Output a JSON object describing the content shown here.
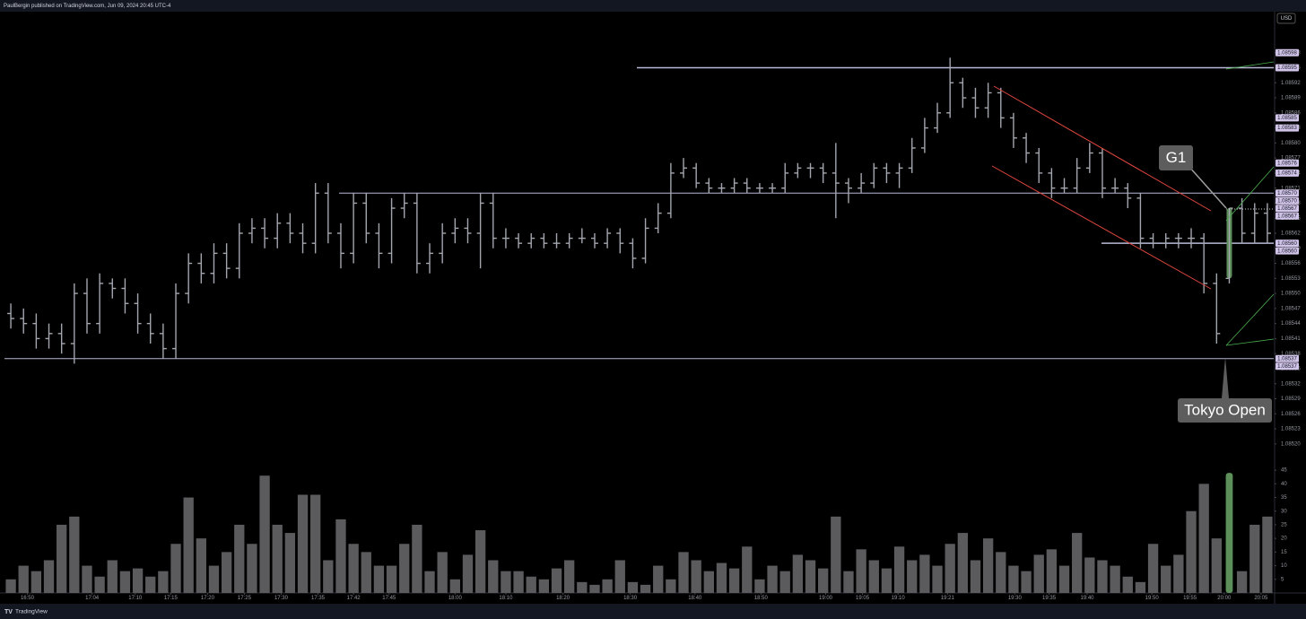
{
  "header": {
    "text": "PaulBergin published on TradingView.com, Jun 09, 2024 20:45 UTC-4"
  },
  "footer": {
    "text": "TradingView"
  },
  "currency": "USD",
  "annotations": {
    "g1": "G1",
    "tokyo": "Tokyo Open"
  },
  "chart_data": {
    "type": "ohlc",
    "bar_color": "#a3a6af",
    "highlight_color": "#5d8f5a",
    "highlight_bar": 96,
    "open": [
      1.08546,
      1.08545,
      1.08544,
      1.08541,
      1.08542,
      1.0854,
      1.0855,
      1.08544,
      1.08552,
      1.08551,
      1.08548,
      1.08544,
      1.08542,
      1.08539,
      1.0855,
      1.08556,
      1.08554,
      1.08558,
      1.08555,
      1.08562,
      1.08563,
      1.08561,
      1.08564,
      1.08562,
      1.0856,
      1.0857,
      1.08562,
      1.08558,
      1.08568,
      1.08562,
      1.08558,
      1.08567,
      1.08568,
      1.08556,
      1.08558,
      1.08562,
      1.08563,
      1.08562,
      1.08568,
      1.08561,
      1.08561,
      1.0856,
      1.08561,
      1.0856,
      1.0856,
      1.08561,
      1.08561,
      1.0856,
      1.08562,
      1.0856,
      1.08557,
      1.08563,
      1.08566,
      1.08574,
      1.08575,
      1.08572,
      1.08571,
      1.08571,
      1.08572,
      1.08571,
      1.08571,
      1.08571,
      1.08574,
      1.08575,
      1.08575,
      1.08574,
      1.08572,
      1.08571,
      1.08572,
      1.08575,
      1.08574,
      1.08575,
      1.08579,
      1.08583,
      1.08586,
      1.08592,
      1.08589,
      1.08587,
      1.0859,
      1.08585,
      1.08581,
      1.08578,
      1.08574,
      1.08571,
      1.08571,
      1.08575,
      1.08578,
      1.08571,
      1.08571,
      1.08569,
      1.08561,
      1.0856,
      1.08561,
      1.08561,
      1.08561,
      1.08552,
      1.08553,
      1.08567,
      1.08562,
      1.08566
    ],
    "high": [
      1.08548,
      1.08547,
      1.08546,
      1.08544,
      1.08544,
      1.08552,
      1.08553,
      1.08554,
      1.08553,
      1.08553,
      1.0855,
      1.08546,
      1.08544,
      1.08552,
      1.08558,
      1.08558,
      1.0856,
      1.0856,
      1.08564,
      1.08565,
      1.08565,
      1.08566,
      1.08566,
      1.08564,
      1.08572,
      1.08572,
      1.08564,
      1.0857,
      1.0857,
      1.08564,
      1.08569,
      1.0857,
      1.0857,
      1.0856,
      1.08564,
      1.08565,
      1.08565,
      1.0857,
      1.0857,
      1.08563,
      1.08562,
      1.08562,
      1.08562,
      1.08562,
      1.08562,
      1.08563,
      1.08562,
      1.08563,
      1.08563,
      1.08561,
      1.08565,
      1.08568,
      1.08576,
      1.08577,
      1.08576,
      1.08573,
      1.08572,
      1.08573,
      1.08573,
      1.08572,
      1.08572,
      1.08576,
      1.08576,
      1.08576,
      1.08576,
      1.0858,
      1.08573,
      1.08574,
      1.08576,
      1.08576,
      1.08576,
      1.08581,
      1.08585,
      1.08588,
      1.08597,
      1.08593,
      1.08591,
      1.08592,
      1.08591,
      1.08586,
      1.08582,
      1.08579,
      1.08575,
      1.08573,
      1.08577,
      1.0858,
      1.08579,
      1.08573,
      1.08572,
      1.0857,
      1.08562,
      1.08562,
      1.08562,
      1.08563,
      1.08562,
      1.08554,
      1.08567,
      1.08569,
      1.08568,
      1.08568
    ],
    "low": [
      1.08543,
      1.08542,
      1.08539,
      1.08539,
      1.08538,
      1.08536,
      1.08542,
      1.08542,
      1.08549,
      1.08546,
      1.08542,
      1.0854,
      1.08537,
      1.08537,
      1.08548,
      1.08552,
      1.08552,
      1.08553,
      1.08553,
      1.0856,
      1.08559,
      1.08559,
      1.0856,
      1.08558,
      1.08558,
      1.0856,
      1.08555,
      1.08556,
      1.0856,
      1.08555,
      1.08556,
      1.08565,
      1.08554,
      1.08554,
      1.08556,
      1.0856,
      1.0856,
      1.08555,
      1.08559,
      1.08559,
      1.08559,
      1.08559,
      1.08559,
      1.08559,
      1.08559,
      1.0856,
      1.08559,
      1.08559,
      1.08558,
      1.08555,
      1.08556,
      1.08562,
      1.08565,
      1.08573,
      1.08571,
      1.0857,
      1.0857,
      1.0857,
      1.0857,
      1.0857,
      1.0857,
      1.0857,
      1.08573,
      1.08573,
      1.08572,
      1.08565,
      1.08568,
      1.0857,
      1.08571,
      1.08572,
      1.08571,
      1.08574,
      1.08578,
      1.08582,
      1.08585,
      1.08587,
      1.08585,
      1.08585,
      1.08583,
      1.08579,
      1.08576,
      1.08572,
      1.08569,
      1.0857,
      1.0857,
      1.08574,
      1.08569,
      1.0857,
      1.08567,
      1.08559,
      1.08559,
      1.08559,
      1.08559,
      1.08559,
      1.0855,
      1.0854,
      1.08552,
      1.0856,
      1.0856,
      1.0856
    ],
    "close": [
      1.08545,
      1.08544,
      1.08541,
      1.08542,
      1.0854,
      1.0855,
      1.08544,
      1.08552,
      1.08551,
      1.08548,
      1.08544,
      1.08542,
      1.08539,
      1.0855,
      1.08556,
      1.08554,
      1.08558,
      1.08555,
      1.08562,
      1.08563,
      1.08561,
      1.08564,
      1.08562,
      1.0856,
      1.0857,
      1.08562,
      1.08558,
      1.08568,
      1.08562,
      1.08558,
      1.08567,
      1.08568,
      1.08556,
      1.08558,
      1.08562,
      1.08563,
      1.08562,
      1.08568,
      1.08561,
      1.08561,
      1.0856,
      1.08561,
      1.0856,
      1.0856,
      1.08561,
      1.08561,
      1.0856,
      1.08562,
      1.0856,
      1.08557,
      1.08563,
      1.08566,
      1.08574,
      1.08575,
      1.08572,
      1.08571,
      1.08571,
      1.08572,
      1.08571,
      1.08571,
      1.08571,
      1.08574,
      1.08575,
      1.08575,
      1.08574,
      1.08572,
      1.08571,
      1.08572,
      1.08575,
      1.08574,
      1.08575,
      1.08579,
      1.08583,
      1.08586,
      1.08592,
      1.08589,
      1.08587,
      1.0859,
      1.08585,
      1.08581,
      1.08578,
      1.08574,
      1.08571,
      1.08571,
      1.08575,
      1.08578,
      1.08571,
      1.08571,
      1.08569,
      1.08561,
      1.0856,
      1.08561,
      1.08561,
      1.08561,
      1.08552,
      1.08542,
      1.08567,
      1.08562,
      1.08566,
      1.08562
    ],
    "volume": [
      5,
      10,
      8,
      12,
      25,
      28,
      10,
      6,
      12,
      8,
      9,
      6,
      8,
      18,
      35,
      20,
      10,
      15,
      25,
      18,
      43,
      25,
      22,
      36,
      36,
      12,
      27,
      18,
      15,
      10,
      10,
      18,
      25,
      8,
      15,
      5,
      14,
      23,
      12,
      8,
      8,
      6,
      5,
      9,
      12,
      4,
      3,
      5,
      12,
      4,
      3,
      10,
      5,
      15,
      12,
      8,
      11,
      9,
      17,
      5,
      10,
      8,
      14,
      12,
      9,
      28,
      8,
      16,
      12,
      9,
      17,
      12,
      14,
      10,
      18,
      22,
      12,
      20,
      15,
      10,
      8,
      14,
      16,
      10,
      22,
      13,
      12,
      10,
      6,
      4,
      18,
      10,
      14,
      30,
      40,
      20,
      44,
      8,
      25,
      28
    ],
    "volume_color": "#5b5b5e",
    "ylim": [
      1.08518,
      1.08606
    ],
    "yticks": [
      {
        "value": 1.0852,
        "label": "1.08520"
      },
      1.08523,
      1.08526,
      1.08529,
      1.08532,
      1.08535,
      1.08538,
      1.08541,
      1.08544,
      1.08547,
      {
        "value": 1.0855,
        "label": "1.08550"
      },
      1.08553,
      1.08556,
      1.08559,
      1.08562,
      1.08565,
      1.08568,
      1.08571,
      1.08574,
      1.08577,
      {
        "value": 1.0858,
        "label": "1.08580"
      },
      1.08583,
      1.08586,
      1.08589,
      1.08592,
      1.08595,
      1.08598
    ],
    "volume_ylim": [
      0,
      48
    ],
    "volume_ticks": [
      5,
      10,
      15,
      20,
      25,
      30,
      35,
      40,
      45
    ],
    "xticks": [
      {
        "value": 1.3,
        "label": "16:50"
      },
      {
        "value": 6.4,
        "label": "17:04"
      },
      {
        "value": 9.8,
        "label": "17:10"
      },
      {
        "value": 12.6,
        "label": "17:15"
      },
      {
        "value": 15.5,
        "label": "17:20"
      },
      {
        "value": 18.4,
        "label": "17:25"
      },
      {
        "value": 21.3,
        "label": "17:30"
      },
      {
        "value": 24.2,
        "label": "17:35"
      },
      {
        "value": 27,
        "label": "17:42"
      },
      {
        "value": 29.8,
        "label": "17:45"
      },
      {
        "value": 35,
        "label": "18:00"
      },
      {
        "value": 39,
        "label": "18:10"
      },
      {
        "value": 43.5,
        "label": "18:20"
      },
      {
        "value": 48.8,
        "label": "18:30"
      },
      {
        "value": 53.9,
        "label": "18:40"
      },
      {
        "value": 59.1,
        "label": "18:50"
      },
      {
        "value": 64.2,
        "label": "19:00"
      },
      {
        "value": 67.1,
        "label": "19:05"
      },
      {
        "value": 69.9,
        "label": "19:10"
      },
      {
        "value": 73.8,
        "label": "19:21"
      },
      {
        "value": 79.1,
        "label": "19:30"
      },
      {
        "value": 81.8,
        "label": "19:35"
      },
      {
        "value": 84.8,
        "label": "19:40"
      },
      {
        "value": 89.9,
        "label": "19:50"
      },
      {
        "value": 92.9,
        "label": "19:55"
      },
      {
        "value": 95.6,
        "label": "20:00"
      },
      {
        "value": 98.5,
        "label": "20:05"
      }
    ],
    "xlim": [
      -0.5,
      99.5
    ],
    "levels": [
      1.08595,
      1.0857,
      1.0856,
      1.08537
    ],
    "price_tags": [
      1.08598,
      1.08595,
      1.08585,
      1.08583,
      1.08576,
      1.08574,
      {
        "value": 1.0857,
        "label": "1.08570"
      },
      {
        "value": 1.0857,
        "label": "1.08570"
      },
      1.08567,
      1.08567,
      {
        "value": 1.0856,
        "label": "1.08560"
      },
      {
        "value": 1.0856,
        "label": "1.08560"
      },
      1.08537,
      1.08537
    ]
  }
}
